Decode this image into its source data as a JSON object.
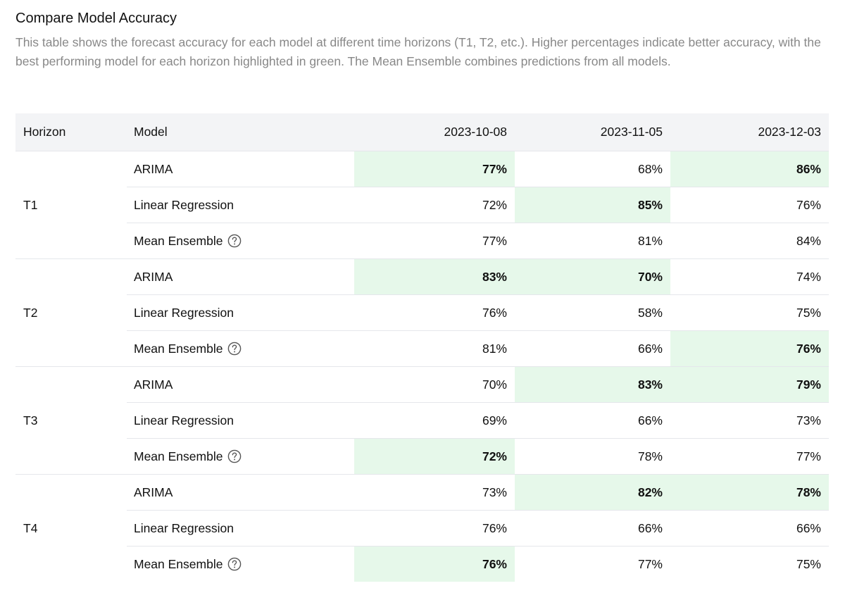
{
  "title": "Compare Model Accuracy",
  "description": "This table shows the forecast accuracy for each model at different time horizons (T1, T2, etc.). Higher percentages indicate better accuracy, with the best performing model for each horizon highlighted in green. The Mean Ensemble combines predictions from all models.",
  "highlight_color": "#e6f8ea",
  "table": {
    "headers": {
      "horizon": "Horizon",
      "model": "Model",
      "dates": [
        "2023-10-08",
        "2023-11-05",
        "2023-12-03"
      ]
    },
    "groups": [
      {
        "horizon": "T1",
        "rows": [
          {
            "model": "ARIMA",
            "help": false,
            "values": [
              "77%",
              "68%",
              "86%"
            ],
            "best": [
              true,
              false,
              true
            ]
          },
          {
            "model": "Linear Regression",
            "help": false,
            "values": [
              "72%",
              "85%",
              "76%"
            ],
            "best": [
              false,
              true,
              false
            ]
          },
          {
            "model": "Mean Ensemble",
            "help": true,
            "values": [
              "77%",
              "81%",
              "84%"
            ],
            "best": [
              false,
              false,
              false
            ]
          }
        ]
      },
      {
        "horizon": "T2",
        "rows": [
          {
            "model": "ARIMA",
            "help": false,
            "values": [
              "83%",
              "70%",
              "74%"
            ],
            "best": [
              true,
              true,
              false
            ]
          },
          {
            "model": "Linear Regression",
            "help": false,
            "values": [
              "76%",
              "58%",
              "75%"
            ],
            "best": [
              false,
              false,
              false
            ]
          },
          {
            "model": "Mean Ensemble",
            "help": true,
            "values": [
              "81%",
              "66%",
              "76%"
            ],
            "best": [
              false,
              false,
              true
            ]
          }
        ]
      },
      {
        "horizon": "T3",
        "rows": [
          {
            "model": "ARIMA",
            "help": false,
            "values": [
              "70%",
              "83%",
              "79%"
            ],
            "best": [
              false,
              true,
              true
            ]
          },
          {
            "model": "Linear Regression",
            "help": false,
            "values": [
              "69%",
              "66%",
              "73%"
            ],
            "best": [
              false,
              false,
              false
            ]
          },
          {
            "model": "Mean Ensemble",
            "help": true,
            "values": [
              "72%",
              "78%",
              "77%"
            ],
            "best": [
              true,
              false,
              false
            ]
          }
        ]
      },
      {
        "horizon": "T4",
        "rows": [
          {
            "model": "ARIMA",
            "help": false,
            "values": [
              "73%",
              "82%",
              "78%"
            ],
            "best": [
              false,
              true,
              true
            ]
          },
          {
            "model": "Linear Regression",
            "help": false,
            "values": [
              "76%",
              "66%",
              "66%"
            ],
            "best": [
              false,
              false,
              false
            ]
          },
          {
            "model": "Mean Ensemble",
            "help": true,
            "values": [
              "76%",
              "77%",
              "75%"
            ],
            "best": [
              true,
              false,
              false
            ]
          }
        ]
      }
    ]
  }
}
